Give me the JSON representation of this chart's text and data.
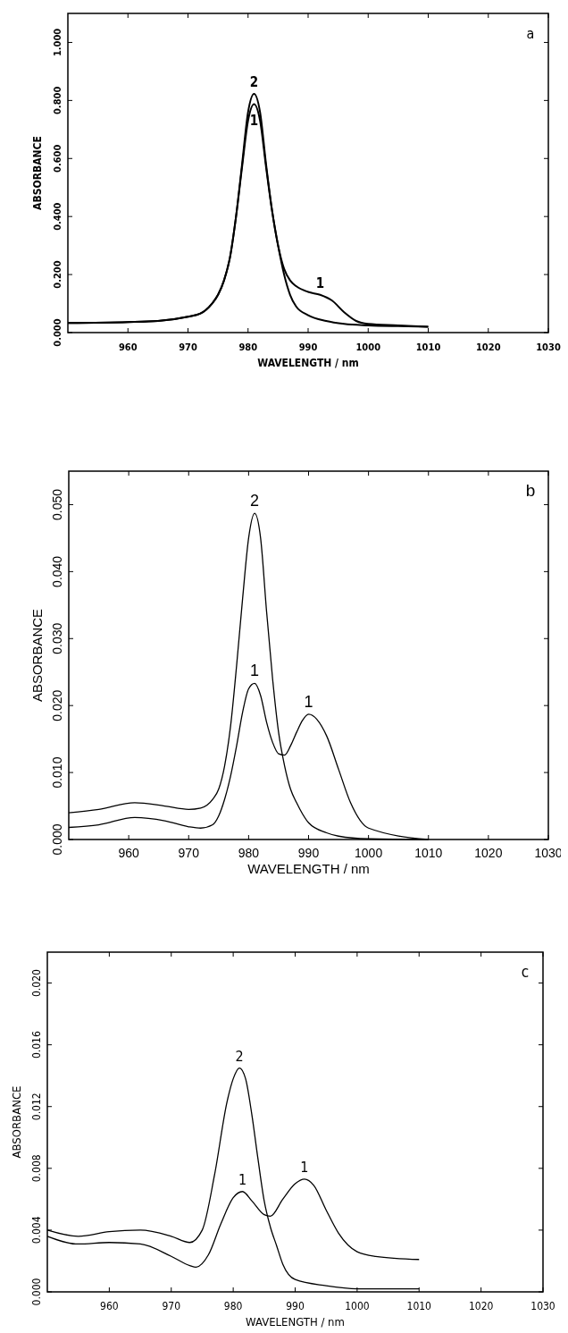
{
  "chart_data": [
    {
      "type": "line",
      "title": "a",
      "xlabel": "WAVELENGTH / nm",
      "ylabel": "ABSORBANCE",
      "xlim": [
        950,
        1030
      ],
      "xticks": [
        960,
        970,
        980,
        990,
        1000,
        1010,
        1020,
        1030
      ],
      "ylim": [
        0,
        1.1
      ],
      "yticks": [
        {
          "value": 0,
          "label": "0.000"
        },
        {
          "value": 0.2,
          "label": "0.200"
        },
        {
          "value": 0.4,
          "label": "0.400"
        },
        {
          "value": 0.6,
          "label": "0.600"
        },
        {
          "value": 0.8,
          "label": "0.800"
        },
        {
          "value": 1,
          "label": "1.000"
        }
      ],
      "grid": false,
      "series": [
        {
          "color": "#000000",
          "x": [
            950,
            960,
            965,
            970,
            972,
            974,
            975,
            976,
            977,
            978,
            979,
            980,
            981,
            982,
            983,
            984,
            985,
            986,
            987,
            988,
            990,
            992,
            994,
            996,
            998,
            1000,
            1005,
            1010
          ],
          "values": [
            0.033,
            0.036,
            0.04,
            0.055,
            0.065,
            0.1,
            0.13,
            0.18,
            0.26,
            0.4,
            0.57,
            0.73,
            0.787,
            0.73,
            0.57,
            0.42,
            0.3,
            0.22,
            0.18,
            0.16,
            0.14,
            0.13,
            0.11,
            0.07,
            0.04,
            0.03,
            0.025,
            0.02
          ]
        },
        {
          "color": "#000000",
          "x": [
            950,
            960,
            965,
            970,
            972,
            974,
            975,
            976,
            977,
            978,
            979,
            980,
            981,
            982,
            983,
            984,
            985,
            986,
            987,
            988,
            990,
            993,
            996,
            1000,
            1005,
            1010
          ],
          "values": [
            0.033,
            0.036,
            0.04,
            0.055,
            0.065,
            0.1,
            0.13,
            0.18,
            0.26,
            0.4,
            0.58,
            0.76,
            0.823,
            0.76,
            0.58,
            0.42,
            0.3,
            0.2,
            0.13,
            0.09,
            0.06,
            0.04,
            0.03,
            0.025,
            0.022,
            0.02
          ]
        }
      ],
      "annotations": [
        {
          "text": "2",
          "x": 981,
          "y": 0.823
        },
        {
          "text": "1",
          "x": 981,
          "y": 0.787
        },
        {
          "text": "1",
          "x": 992,
          "y": 0.13
        }
      ]
    },
    {
      "type": "line",
      "title": "b",
      "xlabel": "WAVELENGTH / nm",
      "ylabel": "ABSORBANCE",
      "xlim": [
        950,
        1030
      ],
      "xticks": [
        960,
        970,
        980,
        990,
        1000,
        1010,
        1020,
        1030
      ],
      "ylim": [
        0,
        0.055
      ],
      "yticks": [
        {
          "value": 0,
          "label": "0.000"
        },
        {
          "value": 0.01,
          "label": "0.010"
        },
        {
          "value": 0.02,
          "label": "0.020"
        },
        {
          "value": 0.03,
          "label": "0.030"
        },
        {
          "value": 0.04,
          "label": "0.040"
        },
        {
          "value": 0.05,
          "label": "0.050"
        }
      ],
      "grid": false,
      "series": [
        {
          "color": "#000000",
          "x": [
            950,
            955,
            961,
            966,
            970,
            972,
            974,
            975,
            976,
            977,
            978,
            979,
            980,
            981,
            982,
            983,
            984,
            985,
            986,
            987,
            988,
            989,
            990,
            993,
            995,
            997,
            1000,
            1010
          ],
          "values": [
            0.0018,
            0.0022,
            0.0033,
            0.0028,
            0.0019,
            0.0017,
            0.0022,
            0.0035,
            0.006,
            0.0095,
            0.014,
            0.019,
            0.0225,
            0.0233,
            0.0215,
            0.0175,
            0.0145,
            0.0128,
            0.0126,
            0.014,
            0.016,
            0.0178,
            0.0187,
            0.0155,
            0.0105,
            0.0055,
            0.0017,
            0
          ]
        },
        {
          "color": "#000000",
          "x": [
            950,
            955,
            961,
            966,
            970,
            972,
            974,
            975,
            976,
            977,
            978,
            979,
            980,
            981,
            982,
            983,
            984,
            985,
            986,
            987,
            988,
            989,
            990,
            993,
            995,
            1000,
            1010
          ],
          "values": [
            0.004,
            0.0045,
            0.0055,
            0.005,
            0.0045,
            0.0047,
            0.006,
            0.0075,
            0.011,
            0.017,
            0.026,
            0.036,
            0.045,
            0.0487,
            0.045,
            0.034,
            0.024,
            0.016,
            0.011,
            0.0075,
            0.0055,
            0.0038,
            0.0025,
            0.001,
            0.0005,
            0.0001,
            0
          ]
        }
      ],
      "annotations": [
        {
          "text": "2",
          "x": 981,
          "y": 0.0487
        },
        {
          "text": "1",
          "x": 981,
          "y": 0.0233
        },
        {
          "text": "1",
          "x": 990,
          "y": 0.0187
        }
      ]
    },
    {
      "type": "line",
      "title": "c",
      "xlabel": "WAVELENGTH / nm",
      "ylabel": "ABSORBANCE",
      "xlim": [
        950,
        1030
      ],
      "xticks": [
        960,
        970,
        980,
        990,
        1000,
        1010,
        1020,
        1030
      ],
      "ylim": [
        0,
        0.022
      ],
      "yticks": [
        {
          "value": 0,
          "label": "0.000"
        },
        {
          "value": 0.004,
          "label": "0.004"
        },
        {
          "value": 0.008,
          "label": "0.008"
        },
        {
          "value": 0.012,
          "label": "0.012"
        },
        {
          "value": 0.016,
          "label": "0.016"
        },
        {
          "value": 0.02,
          "label": "0.020"
        }
      ],
      "grid": false,
      "series": [
        {
          "color": "#000000",
          "x": [
            950,
            955,
            960,
            965,
            970,
            973,
            974,
            976,
            978,
            980,
            981.5,
            983,
            985,
            986,
            988,
            990,
            991.5,
            993,
            995,
            997,
            1000,
            1003,
            1010
          ],
          "values": [
            0.0036,
            0.0031,
            0.0032,
            0.0031,
            0.0023,
            0.0017,
            0.0016,
            0.0024,
            0.0044,
            0.0061,
            0.0065,
            0.0059,
            0.005,
            0.0049,
            0.006,
            0.007,
            0.0073,
            0.0069,
            0.0053,
            0.0038,
            0.0026,
            0.0023,
            0.0021
          ]
        },
        {
          "color": "#000000",
          "x": [
            950,
            955,
            960,
            965,
            970,
            973,
            975,
            977,
            979,
            980,
            981,
            982,
            983,
            984,
            985,
            986,
            987,
            988,
            990,
            995,
            1000,
            1010
          ],
          "values": [
            0.004,
            0.0036,
            0.0039,
            0.004,
            0.0036,
            0.0032,
            0.004,
            0.0076,
            0.0123,
            0.0138,
            0.0145,
            0.0138,
            0.0115,
            0.0086,
            0.0059,
            0.0042,
            0.003,
            0.0018,
            0.0008,
            0.0004,
            0.0002,
            0.0002
          ]
        }
      ],
      "annotations": [
        {
          "text": "2",
          "x": 981,
          "y": 0.0145
        },
        {
          "text": "1",
          "x": 981.5,
          "y": 0.0065
        },
        {
          "text": "1",
          "x": 991.5,
          "y": 0.0073
        }
      ]
    }
  ]
}
